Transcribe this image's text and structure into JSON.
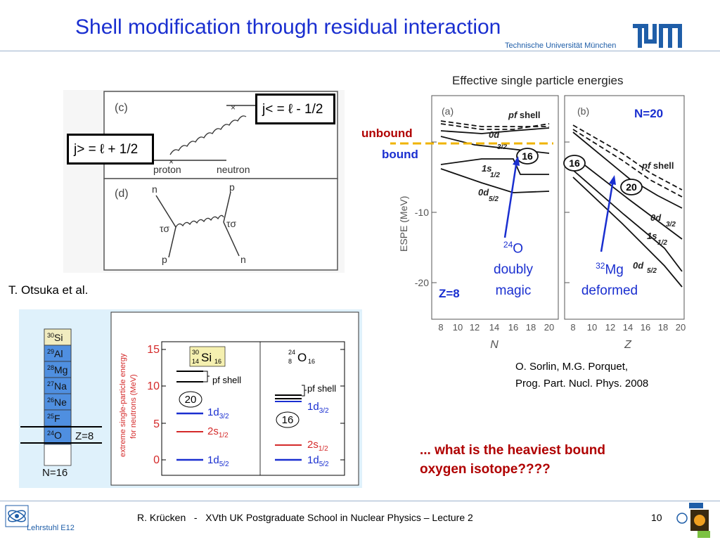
{
  "header": {
    "title": "Shell modification through residual interaction",
    "institution": "Technische Universität München",
    "logo_text": "TUM"
  },
  "feynman": {
    "panel_c_label": "(c)",
    "panel_d_label": "(d)",
    "j_less": "j< = ℓ - 1/2",
    "j_greater": "j> = ℓ + 1/2",
    "proton": "proton",
    "neutron": "neutron",
    "d_n_top": "n",
    "d_p_top": "p",
    "d_p_bottom": "p",
    "d_n_bottom": "n",
    "tau_sigma": "τσ",
    "credit": "T. Otsuka et al."
  },
  "isotope_chart": {
    "isotopes": [
      {
        "mass": "30",
        "symbol": "Si"
      },
      {
        "mass": "29",
        "symbol": "Al"
      },
      {
        "mass": "28",
        "symbol": "Mg"
      },
      {
        "mass": "27",
        "symbol": "Na"
      },
      {
        "mass": "26",
        "symbol": "Ne"
      },
      {
        "mass": "25",
        "symbol": "F"
      },
      {
        "mass": "24",
        "symbol": "O"
      }
    ],
    "z_label": "Z=8",
    "n_label": "N=16",
    "y_axis_label_1": "extreme single-particle energy",
    "y_axis_label_2": "for neutrons (MeV)",
    "y_ticks": [
      "15",
      "10",
      "5",
      "0"
    ],
    "si_label": {
      "mass": "30",
      "z": "14",
      "symbol": "Si",
      "n": "16"
    },
    "o_label": {
      "mass": "24",
      "z": "8",
      "symbol": "O",
      "n": "16"
    },
    "pf_shell": "pf shell",
    "gap_si": "20",
    "gap_o": "16",
    "d32": "1d",
    "d32_sub": "3/2",
    "s12": "2s",
    "s12_sub": "1/2",
    "d52": "1d",
    "d52_sub": "5/2"
  },
  "espe_chart": {
    "heading": "Effective single particle energies",
    "panel_a": "(a)",
    "panel_b": "(b)",
    "y_axis_label": "ESPE (MeV)",
    "y_ticks": [
      "-10",
      "-20"
    ],
    "x_ticks": [
      "8",
      "10",
      "12",
      "14",
      "16",
      "18",
      "20"
    ],
    "x_label_a": "N",
    "x_label_b": "Z",
    "pf_shell": "pf shell",
    "pf": "pf",
    "shell": "shell",
    "orb_0d32": "0d",
    "sub_32": "3/2",
    "orb_1s12": "1s",
    "sub_12": "1/2",
    "orb_0d52": "0d",
    "sub_52": "5/2",
    "gap_16": "16",
    "gap_20": "20",
    "unbound": "unbound",
    "bound": "bound",
    "z8": "Z=8",
    "n20": "N=20",
    "o24_mass": "24",
    "o24_symbol": "O",
    "o24_line2": "doubly",
    "o24_line3": "magic",
    "mg32_mass": "32",
    "mg32_symbol": "Mg",
    "mg32_line2": "deformed",
    "reference_1": "O. Sorlin, M.G. Porquet,",
    "reference_2": "Prog. Part. Nucl. Phys. 2008"
  },
  "question": {
    "line1": "... what is the heaviest bound",
    "line2": "oxygen isotope????"
  },
  "footer": {
    "author_line": "R. Krücken   -   XVth UK Postgraduate School in Nuclear Physics – Lecture 2",
    "page_number": "10",
    "chair": "Lehrstuhl E12"
  },
  "colors": {
    "title_blue": "#1a2fd0",
    "dark_red": "#b00000",
    "isotope_blue": "#4f8fe0",
    "chart_bg": "#dff1fb",
    "bound_line": "#f0b400"
  }
}
